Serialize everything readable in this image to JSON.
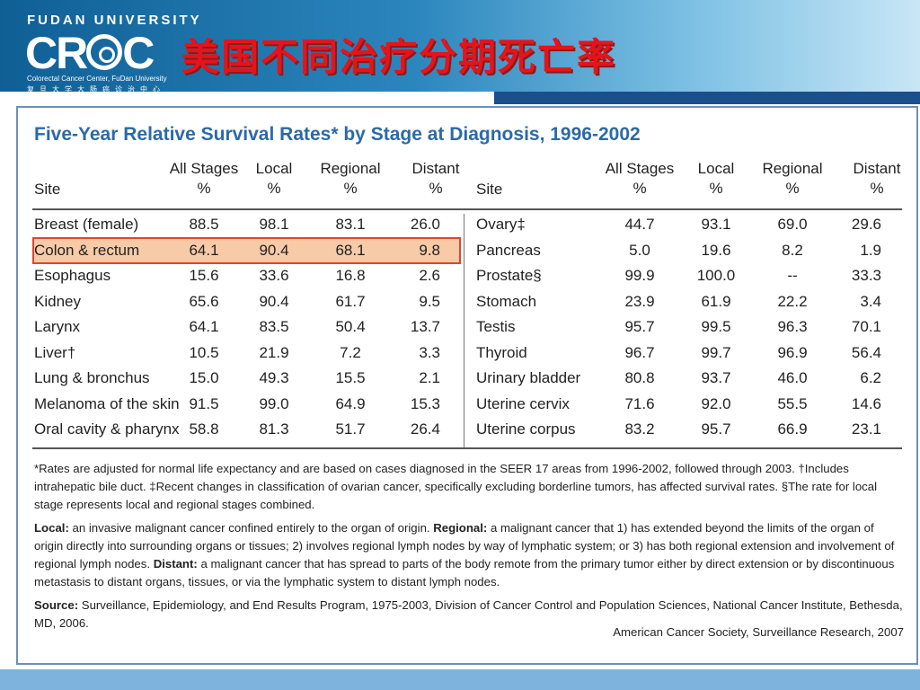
{
  "header": {
    "university": "FUDAN UNIVERSITY",
    "logo_prefix": "CR",
    "logo_suffix": "C",
    "subtitle_en": "Colorectal Cancer Center, FuDan University",
    "subtitle_cn": "复旦大学大肠癌诊治中心",
    "title_cn": "美国不同治疗分期死亡率"
  },
  "table": {
    "title": "Five-Year Relative Survival Rates* by Stage at Diagnosis, 1996-2002",
    "columns": [
      {
        "top": "",
        "bottom": "Site"
      },
      {
        "top": "All Stages",
        "bottom": "%"
      },
      {
        "top": "Local",
        "bottom": "%"
      },
      {
        "top": "Regional",
        "bottom": "%"
      },
      {
        "top": "Distant",
        "bottom": "%"
      }
    ],
    "left_rows": [
      [
        "Breast (female)",
        "88.5",
        "98.1",
        "83.1",
        "26.0"
      ],
      [
        "Colon & rectum",
        "64.1",
        "90.4",
        "68.1",
        "9.8"
      ],
      [
        "Esophagus",
        "15.6",
        "33.6",
        "16.8",
        "2.6"
      ],
      [
        "Kidney",
        "65.6",
        "90.4",
        "61.7",
        "9.5"
      ],
      [
        "Larynx",
        "64.1",
        "83.5",
        "50.4",
        "13.7"
      ],
      [
        "Liver†",
        "10.5",
        "21.9",
        "7.2",
        "3.3"
      ],
      [
        "Lung & bronchus",
        "15.0",
        "49.3",
        "15.5",
        "2.1"
      ],
      [
        "Melanoma of the skin",
        "91.5",
        "99.0",
        "64.9",
        "15.3"
      ],
      [
        "Oral cavity & pharynx",
        "58.8",
        "81.3",
        "51.7",
        "26.4"
      ]
    ],
    "right_rows": [
      [
        "Ovary‡",
        "44.7",
        "93.1",
        "69.0",
        "29.6"
      ],
      [
        "Pancreas",
        "5.0",
        "19.6",
        "8.2",
        "1.9"
      ],
      [
        "Prostate§",
        "99.9",
        "100.0",
        "--",
        "33.3"
      ],
      [
        "Stomach",
        "23.9",
        "61.9",
        "22.2",
        "3.4"
      ],
      [
        "Testis",
        "95.7",
        "99.5",
        "96.3",
        "70.1"
      ],
      [
        "Thyroid",
        "96.7",
        "99.7",
        "96.9",
        "56.4"
      ],
      [
        "Urinary bladder",
        "80.8",
        "93.7",
        "46.0",
        "6.2"
      ],
      [
        "Uterine cervix",
        "71.6",
        "92.0",
        "55.5",
        "14.6"
      ],
      [
        "Uterine corpus",
        "83.2",
        "95.7",
        "66.9",
        "23.1"
      ]
    ],
    "highlight_color": "#f7caa8",
    "highlight_border": "#e0452c"
  },
  "notes": {
    "footnote": "*Rates are adjusted for normal life expectancy and are based on cases diagnosed in the SEER 17 areas from 1996-2002, followed through 2003. †Includes intrahepatic bile duct. ‡Recent changes in classification of ovarian cancer, specifically excluding borderline tumors, has affected survival rates. §The rate for local stage represents local and regional stages combined.",
    "local_label": "Local:",
    "local_text": " an invasive malignant cancer confined entirely to the organ of origin. ",
    "regional_label": "Regional:",
    "regional_text": " a malignant cancer that 1) has extended beyond the limits of the organ of origin directly into surrounding organs or tissues; 2) involves regional lymph nodes by way of lymphatic system; or 3) has both regional extension and involvement of regional lymph nodes. ",
    "distant_label": "Distant:",
    "distant_text": " a malignant cancer that has spread to parts of the body remote from the primary tumor either by direct extension or by discontinuous metastasis to distant organs, tissues, or via the lymphatic system to distant lymph nodes.",
    "source_label": "Source:",
    "source_text": " Surveillance, Epidemiology, and End Results Program, 1975-2003, Division of Cancer Control and Population Sciences, National Cancer Institute, Bethesda, MD, 2006.",
    "credit": "American Cancer Society, Surveillance Research, 2007"
  }
}
